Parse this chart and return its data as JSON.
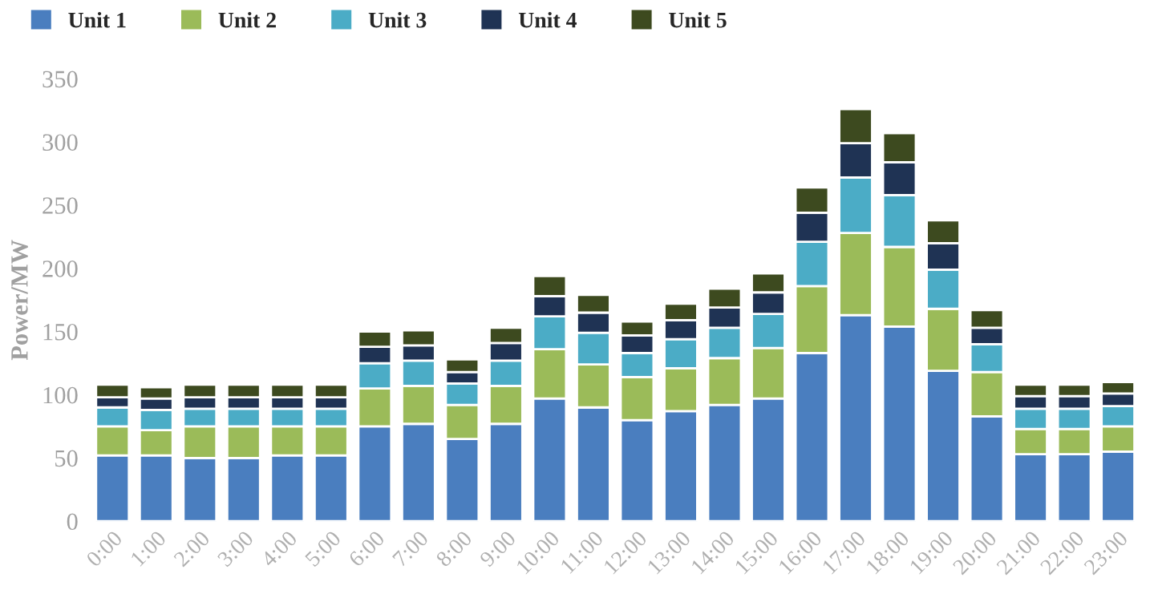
{
  "chart_data": {
    "type": "bar",
    "stacked": true,
    "ylabel": "Power/MW",
    "categories": [
      "0:00",
      "1:00",
      "2:00",
      "3:00",
      "4:00",
      "5:00",
      "6:00",
      "7:00",
      "8:00",
      "9:00",
      "10:00",
      "11:00",
      "12:00",
      "13:00",
      "14:00",
      "15:00",
      "16:00",
      "17:00",
      "18:00",
      "19:00",
      "20:00",
      "21:00",
      "22:00",
      "23:00"
    ],
    "series": [
      {
        "name": "Unit 1",
        "color": "#4a7ebf",
        "values": [
          52,
          52,
          50,
          50,
          52,
          52,
          75,
          77,
          65,
          77,
          97,
          90,
          80,
          87,
          92,
          97,
          133,
          163,
          154,
          119,
          83,
          53,
          53,
          55
        ]
      },
      {
        "name": "Unit 2",
        "color": "#9bbb59",
        "values": [
          23,
          20,
          25,
          25,
          23,
          23,
          30,
          30,
          27,
          30,
          39,
          34,
          34,
          34,
          37,
          40,
          53,
          65,
          63,
          49,
          35,
          20,
          20,
          20
        ]
      },
      {
        "name": "Unit 3",
        "color": "#4bacc6",
        "values": [
          15,
          16,
          14,
          14,
          14,
          14,
          20,
          20,
          17,
          20,
          26,
          25,
          19,
          23,
          24,
          27,
          35,
          44,
          41,
          31,
          22,
          16,
          16,
          16
        ]
      },
      {
        "name": "Unit 4",
        "color": "#1f3354",
        "values": [
          8,
          9,
          9,
          9,
          9,
          9,
          13,
          12,
          9,
          14,
          16,
          16,
          14,
          15,
          16,
          17,
          23,
          27,
          26,
          21,
          13,
          10,
          10,
          10
        ]
      },
      {
        "name": "Unit 5",
        "color": "#3d4a1f",
        "values": [
          10,
          9,
          10,
          10,
          10,
          10,
          12,
          12,
          10,
          12,
          16,
          14,
          11,
          13,
          15,
          15,
          20,
          27,
          23,
          18,
          14,
          9,
          9,
          9
        ]
      }
    ],
    "ylim": [
      0,
      350
    ],
    "yticks": [
      0,
      50,
      100,
      150,
      200,
      250,
      300,
      350
    ],
    "grid": false,
    "legend": "top left"
  }
}
